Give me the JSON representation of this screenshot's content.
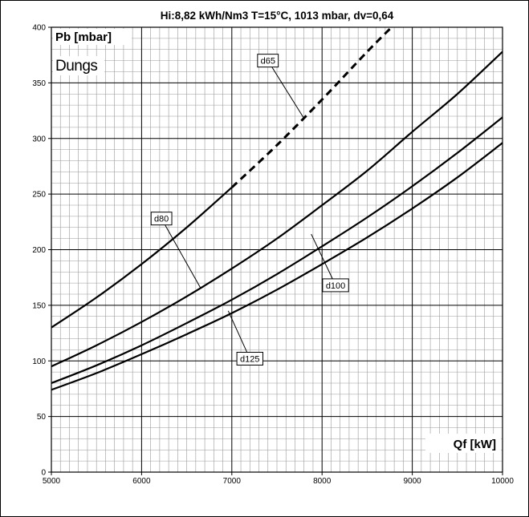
{
  "chart_data": {
    "type": "line",
    "title": "Hi:8,82 kWh/Nm3 T=15°C, 1013 mbar, dv=0,64",
    "ylabel": "Pb [mbar]",
    "xlabel": "Qf [kW]",
    "brand": "Dungs",
    "xlim": [
      5000,
      10000
    ],
    "ylim": [
      0,
      400
    ],
    "x_ticks": [
      5000,
      6000,
      7000,
      8000,
      9000,
      10000
    ],
    "y_ticks": [
      0,
      50,
      100,
      150,
      200,
      250,
      300,
      350,
      400
    ],
    "grid": true,
    "series": [
      {
        "name": "d65",
        "style": "solid-then-dashed",
        "dash_from_x": 7000,
        "x": [
          5000,
          5500,
          6000,
          6500,
          7000,
          7500,
          8000,
          8500,
          8770
        ],
        "y": [
          130,
          157,
          187,
          220,
          256,
          294,
          335,
          378,
          400
        ]
      },
      {
        "name": "d80",
        "style": "solid",
        "x": [
          5000,
          5500,
          6000,
          6500,
          7000,
          7500,
          8000,
          8500,
          9000,
          9500,
          10000
        ],
        "y": [
          95,
          114,
          135,
          158,
          183,
          210,
          240,
          271,
          306,
          340,
          378
        ]
      },
      {
        "name": "d100",
        "style": "solid",
        "x": [
          5000,
          5500,
          6000,
          6500,
          7000,
          7500,
          8000,
          8500,
          9000,
          9500,
          10000
        ],
        "y": [
          80,
          96,
          114,
          134,
          155,
          178,
          203,
          229,
          257,
          287,
          319
        ]
      },
      {
        "name": "d125",
        "style": "solid",
        "x": [
          5000,
          5500,
          6000,
          6500,
          7000,
          7500,
          8000,
          8500,
          9000,
          9500,
          10000
        ],
        "y": [
          74,
          89,
          106,
          124,
          143,
          164,
          187,
          211,
          237,
          265,
          296
        ]
      }
    ],
    "annotations": [
      {
        "text": "d65",
        "series": "d65",
        "box_at": [
          7400,
          370
        ],
        "point_to": [
          7800,
          318
        ]
      },
      {
        "text": "d80",
        "series": "d80",
        "box_at": [
          6220,
          228
        ],
        "point_to": [
          6650,
          166
        ]
      },
      {
        "text": "d100",
        "series": "d100",
        "box_at": [
          8150,
          168
        ],
        "point_to": [
          7880,
          214
        ]
      },
      {
        "text": "d125",
        "series": "d125",
        "box_at": [
          7200,
          102
        ],
        "point_to": [
          6960,
          145
        ]
      }
    ]
  }
}
